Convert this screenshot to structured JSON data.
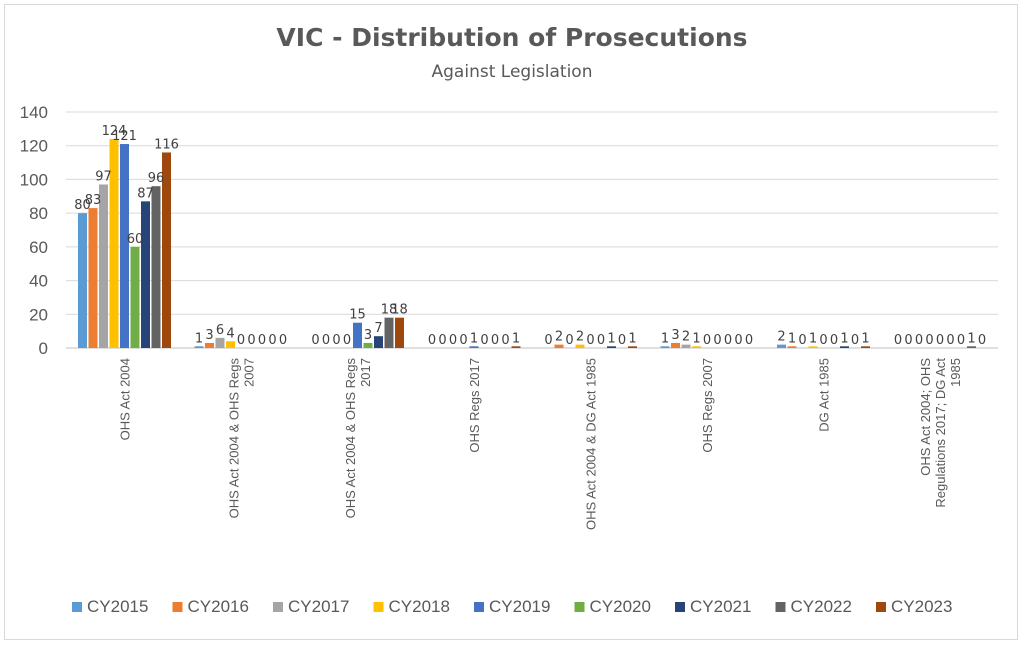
{
  "chart_data": {
    "type": "bar",
    "title": "VIC - Distribution of Prosecutions",
    "subtitle": "Against Legislation",
    "xlabel": "",
    "ylabel": "",
    "ylim": [
      0,
      140
    ],
    "yticks": [
      0,
      20,
      40,
      60,
      80,
      100,
      120,
      140
    ],
    "grid": true,
    "legend_position": "bottom",
    "categories": [
      "OHS Act 2004",
      "OHS Act 2004 & OHS Regs 2007",
      "OHS Act 2004 & OHS Regs 2017",
      "OHS Regs 2017",
      "OHS Act 2004 & DG Act 1985",
      "OHS Regs 2007",
      "DG Act 1985",
      "OHS Act 2004; OHS Regulations 2017; DG Act 1985"
    ],
    "series": [
      {
        "name": "CY2015",
        "color": "#5b9bd5",
        "values": [
          80,
          1,
          0,
          0,
          0,
          1,
          2,
          0
        ]
      },
      {
        "name": "CY2016",
        "color": "#ed7d31",
        "values": [
          83,
          3,
          0,
          0,
          2,
          3,
          1,
          0
        ]
      },
      {
        "name": "CY2017",
        "color": "#a5a5a5",
        "values": [
          97,
          6,
          0,
          0,
          0,
          2,
          0,
          0
        ]
      },
      {
        "name": "CY2018",
        "color": "#ffc000",
        "values": [
          124,
          4,
          0,
          0,
          2,
          1,
          1,
          0
        ]
      },
      {
        "name": "CY2019",
        "color": "#4472c4",
        "values": [
          121,
          0,
          15,
          1,
          0,
          0,
          0,
          0
        ]
      },
      {
        "name": "CY2020",
        "color": "#70ad47",
        "values": [
          60,
          0,
          3,
          0,
          0,
          0,
          0,
          0
        ]
      },
      {
        "name": "CY2021",
        "color": "#264478",
        "values": [
          87,
          0,
          7,
          0,
          1,
          0,
          1,
          0
        ]
      },
      {
        "name": "CY2022",
        "color": "#636363",
        "values": [
          96,
          0,
          18,
          0,
          0,
          0,
          0,
          1
        ]
      },
      {
        "name": "CY2023",
        "color": "#9e480e",
        "values": [
          116,
          0,
          18,
          1,
          1,
          0,
          1,
          0
        ]
      }
    ]
  }
}
